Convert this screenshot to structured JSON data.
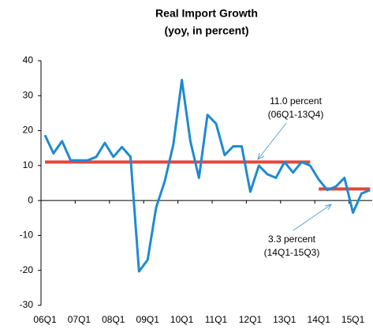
{
  "chart_data": {
    "type": "line",
    "title": "Real Import Growth",
    "subtitle": "(yoy, in percent)",
    "categories": [
      "06Q1",
      null,
      null,
      null,
      "07Q1",
      null,
      null,
      null,
      "08Q1",
      null,
      null,
      null,
      "09Q1",
      null,
      null,
      null,
      "10Q1",
      null,
      null,
      null,
      "11Q1",
      null,
      null,
      null,
      "12Q1",
      null,
      null,
      null,
      "13Q1",
      null,
      null,
      null,
      "14Q1",
      null,
      null,
      null,
      "15Q1",
      null,
      null
    ],
    "series": [
      {
        "color": "#1f8ad2",
        "values": [
          18.7,
          13.5,
          17,
          11.5,
          11.5,
          11.5,
          12.5,
          16.5,
          12.5,
          15.3,
          12.5,
          -20.3,
          -17,
          -2,
          5.5,
          16,
          34.5,
          17,
          6.5,
          24.5,
          22,
          13,
          15.5,
          15.5,
          2.5,
          10,
          7.5,
          6.5,
          11,
          8,
          11,
          10,
          6,
          3,
          4,
          6.5,
          -3.5,
          2,
          3
        ]
      }
    ],
    "reference_lines": [
      {
        "color": "#e0483c",
        "label": "11.0 percent",
        "period": "(06Q1-13Q4)",
        "values": [
          11,
          11,
          11,
          11,
          11,
          11,
          11,
          11,
          11,
          11,
          11,
          11,
          11,
          11,
          11,
          11,
          11,
          11,
          11,
          11,
          11,
          11,
          11,
          11,
          11,
          11,
          11,
          11,
          11,
          11,
          11,
          11,
          null,
          null,
          null,
          null,
          null,
          null,
          null
        ]
      },
      {
        "color": "#e0483c",
        "label": "3.3 percent",
        "period": "(14Q1-15Q3)",
        "values": [
          null,
          null,
          null,
          null,
          null,
          null,
          null,
          null,
          null,
          null,
          null,
          null,
          null,
          null,
          null,
          null,
          null,
          null,
          null,
          null,
          null,
          null,
          null,
          null,
          null,
          null,
          null,
          null,
          null,
          null,
          null,
          null,
          3.3,
          3.3,
          3.3,
          3.3,
          3.3,
          3.3,
          3.3
        ]
      }
    ],
    "ylim": [
      -30,
      40
    ],
    "yticks": [
      -30,
      -20,
      -10,
      0,
      10,
      20,
      30,
      40
    ],
    "grid": false
  }
}
